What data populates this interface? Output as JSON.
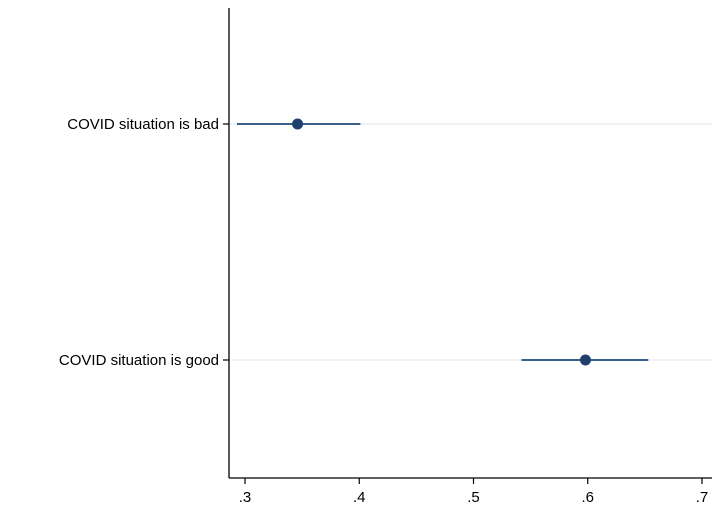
{
  "chart_data": {
    "type": "scatter",
    "orientation": "horizontal",
    "title": "",
    "xlabel": "",
    "ylabel": "",
    "xlim": [
      0.285,
      0.71
    ],
    "x_ticks": [
      0.3,
      0.4,
      0.5,
      0.6,
      0.7
    ],
    "x_tick_labels": [
      ".3",
      ".4",
      ".5",
      ".6",
      ".7"
    ],
    "grid": "horizontal",
    "legend": "none",
    "colors": {
      "marker": "#1f3f6e",
      "ci_line": "#3a5f8a",
      "grid": "#e4eef0",
      "axis": "#000000"
    },
    "points": [
      {
        "label": "COVID situation is bad",
        "estimate": 0.346,
        "ci_low": 0.293,
        "ci_high": 0.401
      },
      {
        "label": "COVID situation is good",
        "estimate": 0.598,
        "ci_low": 0.542,
        "ci_high": 0.653
      }
    ]
  }
}
